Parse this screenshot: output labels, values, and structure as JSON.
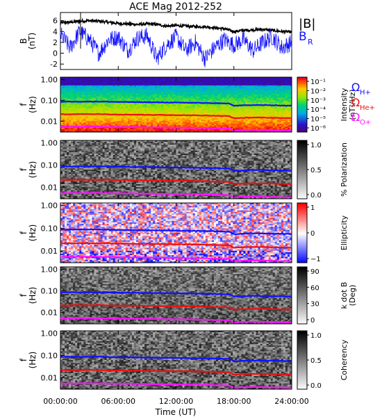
{
  "chart_data": {
    "type": "heatmap",
    "title": "ACE Mag 2012-252",
    "xlabel": "Time (UT)",
    "x_tick_labels": [
      "00:00:00",
      "06:00:00",
      "12:00:00",
      "18:00:00",
      "24:00:00"
    ],
    "x_hours": [
      0,
      6,
      12,
      18,
      24
    ],
    "line_panel": {
      "ylabel": "B",
      "yunit": "(nT)",
      "ylim": [
        -3,
        7.5
      ],
      "y_ticks": [
        -2,
        0,
        2,
        4,
        6
      ],
      "series": [
        {
          "name": "|B|",
          "color": "#000000",
          "x": [
            0,
            1,
            2,
            3,
            4,
            5,
            6,
            7,
            8,
            9,
            10,
            11,
            12,
            13,
            14,
            15,
            16,
            17,
            18,
            19,
            20,
            21,
            22,
            23,
            24
          ],
          "values": [
            5.6,
            5.7,
            5.9,
            6.0,
            5.9,
            5.7,
            5.5,
            5.4,
            5.3,
            5.4,
            5.3,
            5.0,
            5.1,
            5.0,
            4.9,
            4.9,
            4.7,
            4.5,
            4.0,
            4.2,
            4.3,
            4.4,
            4.2,
            4.0,
            3.9
          ]
        },
        {
          "name": "B",
          "subscript": "R",
          "color": "#1010ff",
          "x": [
            0,
            1,
            2,
            3,
            4,
            5,
            6,
            7,
            8,
            9,
            10,
            11,
            12,
            13,
            14,
            15,
            16,
            17,
            18,
            19,
            20,
            21,
            22,
            23,
            24
          ],
          "values": [
            3.5,
            1.0,
            4.0,
            2.5,
            0.0,
            2.5,
            3.0,
            0.5,
            2.8,
            3.2,
            -1.0,
            1.5,
            3.0,
            0.5,
            2.0,
            -1.0,
            1.0,
            2.5,
            1.5,
            2.5,
            0.5,
            2.0,
            3.0,
            1.0,
            2.0
          ]
        }
      ]
    },
    "freq_panels": [
      {
        "ylabel": "f",
        "yunit": "(Hz)",
        "y_ticks": [
          1.0,
          0.1,
          0.01
        ],
        "y_tick_labels": [
          "1.00",
          "0.10",
          "0.01"
        ],
        "colorbar": {
          "label": "Intensity",
          "unit": "(nT²/Hz)",
          "scale": "log",
          "tick_labels": [
            "10⁻¹",
            "10⁻²",
            "10⁻³",
            "10⁻⁴",
            "10⁻⁵",
            "10⁻⁶"
          ],
          "colormap": "rainbow"
        }
      },
      {
        "ylabel": "f",
        "yunit": "(Hz)",
        "y_ticks": [
          1.0,
          0.1,
          0.01
        ],
        "y_tick_labels": [
          "1.00",
          "0.10",
          "0.01"
        ],
        "colorbar": {
          "label": "% Polarization",
          "tick_labels": [
            "1.0",
            "0.5",
            "0.0"
          ],
          "colormap": "gray"
        }
      },
      {
        "ylabel": "f",
        "yunit": "(Hz)",
        "y_ticks": [
          1.0,
          0.1,
          0.01
        ],
        "y_tick_labels": [
          "1.00",
          "0.10",
          "0.01"
        ],
        "colorbar": {
          "label": "Ellipticity",
          "tick_labels": [
            "1",
            "0",
            "−1"
          ],
          "colormap": "blue-white-red"
        }
      },
      {
        "ylabel": "f",
        "yunit": "(Hz)",
        "y_ticks": [
          1.0,
          0.1,
          0.01
        ],
        "y_tick_labels": [
          "1.00",
          "0.10",
          "0.01"
        ],
        "colorbar": {
          "label": "k dot B",
          "unit": "(Deg)",
          "tick_labels": [
            "90",
            "60",
            "30",
            "0"
          ],
          "colormap": "gray"
        }
      },
      {
        "ylabel": "f",
        "yunit": "(Hz)",
        "y_ticks": [
          1.0,
          0.1,
          0.01
        ],
        "y_tick_labels": [
          "1.00",
          "0.10",
          "0.01"
        ],
        "colorbar": {
          "label": "Coherency",
          "tick_labels": [
            "1.0",
            "0.5",
            "0.0"
          ],
          "colormap": "gray"
        }
      }
    ],
    "gyro_lines": {
      "x": [
        0,
        2,
        4,
        6,
        8,
        10,
        12,
        14,
        16,
        17.5,
        18,
        20,
        22,
        24
      ],
      "series": [
        {
          "name": "Ω",
          "subscript": "H+",
          "color": "#1010ff",
          "values": [
            0.086,
            0.087,
            0.088,
            0.084,
            0.082,
            0.08,
            0.078,
            0.076,
            0.073,
            0.07,
            0.055,
            0.06,
            0.058,
            0.055
          ]
        },
        {
          "name": "Ω",
          "subscript": "He+",
          "color": "#ee1010",
          "values": [
            0.0215,
            0.0218,
            0.022,
            0.021,
            0.0205,
            0.02,
            0.0195,
            0.019,
            0.0183,
            0.0175,
            0.0138,
            0.015,
            0.0145,
            0.0138
          ]
        },
        {
          "name": "Ω",
          "subscript": "O+",
          "color": "#ff10ff",
          "values": [
            0.0054,
            0.0055,
            0.0055,
            0.0053,
            0.0052,
            0.005,
            0.0049,
            0.0048,
            0.0046,
            0.0044,
            0.0035,
            0.0038,
            0.0036,
            0.0035
          ]
        }
      ]
    }
  }
}
